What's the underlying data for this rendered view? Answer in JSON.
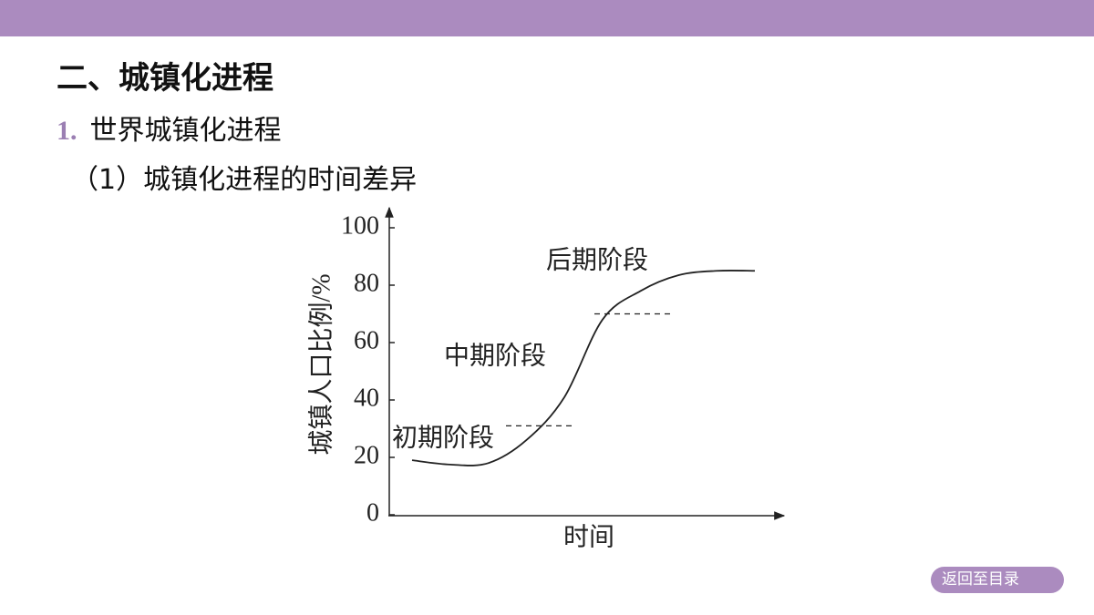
{
  "header": {
    "heading": "二、城镇化进程",
    "section_number": "1.",
    "section_title": "世界城镇化进程",
    "subsection": "（1）城镇化进程的时间差异"
  },
  "chart_data": {
    "type": "line",
    "y_label": "城镇人口比例/%",
    "x_label": "时间",
    "categories": [
      null,
      null,
      null,
      null,
      null,
      null,
      null,
      null,
      null,
      null
    ],
    "values": [
      19,
      17.5,
      18,
      26,
      41,
      68,
      78,
      83.5,
      85,
      85
    ],
    "color": "#222222",
    "ylim": [
      0,
      100
    ],
    "yticks": [
      0,
      20,
      40,
      60,
      80,
      100
    ],
    "reference_lines": [
      31,
      70
    ],
    "annotations": [
      "初期阶段",
      "中期阶段",
      "后期阶段"
    ]
  },
  "button": {
    "label": "返回至目录"
  }
}
